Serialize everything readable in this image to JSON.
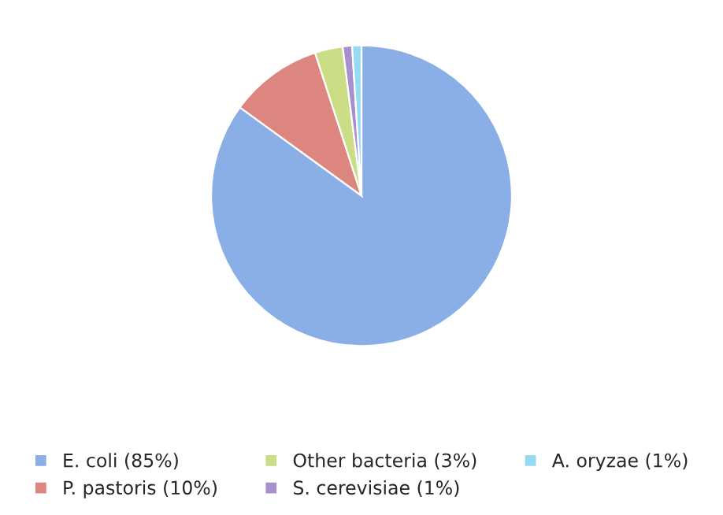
{
  "chart_data": {
    "type": "pie",
    "categories": [
      "E. coli (85%)",
      "P. pastoris (10%)",
      "Other bacteria (3%)",
      "S. cerevisiae (1%)",
      "A. oryzae (1%)"
    ],
    "values": [
      85,
      10,
      3,
      1,
      1
    ],
    "colors": [
      "#8aaee6",
      "#dd8680",
      "#cbde86",
      "#a890cc",
      "#95dcf2"
    ],
    "legend": "bottom"
  }
}
